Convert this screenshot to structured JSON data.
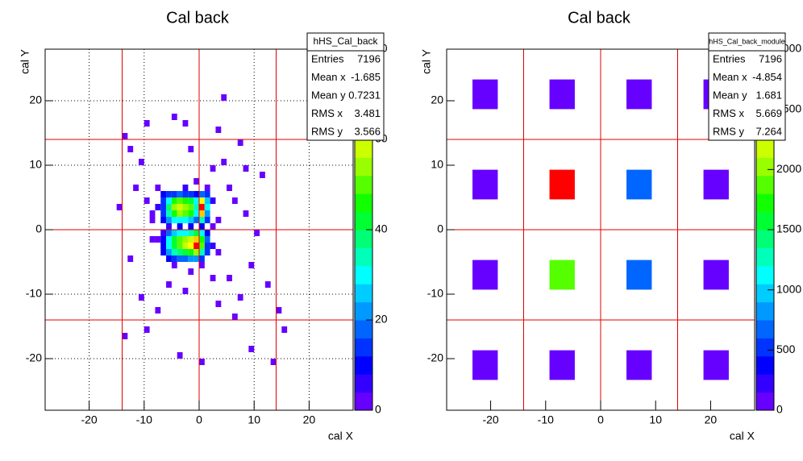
{
  "chart_data": [
    {
      "type": "heatmap",
      "title": "Cal back",
      "xlabel": "cal X",
      "ylabel": "cal Y",
      "xlim": [
        -28,
        28
      ],
      "ylim": [
        -28,
        28
      ],
      "xticks": [
        -20,
        -10,
        0,
        10,
        20
      ],
      "yticks": [
        -20,
        -10,
        0,
        10,
        20
      ],
      "zlim": [
        0,
        80
      ],
      "zticks": [
        0,
        20,
        40,
        60,
        80
      ],
      "grid": true,
      "boundaries": [
        -14,
        0,
        14
      ],
      "bin_width": 1,
      "palette": [
        "#6600ff",
        "#3300ff",
        "#0000ff",
        "#0033ff",
        "#0066ff",
        "#0099ff",
        "#00ccff",
        "#00ffff",
        "#00ffbb",
        "#00ff77",
        "#00ff33",
        "#11ff00",
        "#55ff00",
        "#99ff00",
        "#ccff00",
        "#ffff00",
        "#ffcc00",
        "#ff8800",
        "#ff4400",
        "#ff0000"
      ],
      "stats": {
        "title": "hHS_Cal_back",
        "rows": [
          {
            "label": "Entries",
            "value": 7196
          },
          {
            "label": "Mean x",
            "value": -1.685
          },
          {
            "label": "Mean y",
            "value": 0.7231
          },
          {
            "label": "RMS x",
            "value": 3.481
          },
          {
            "label": "RMS y",
            "value": 3.566
          }
        ]
      },
      "cells": [
        [
          -7,
          5,
          8
        ],
        [
          -6,
          5,
          12
        ],
        [
          -5,
          5,
          14
        ],
        [
          -4,
          5,
          16
        ],
        [
          -3,
          5,
          14
        ],
        [
          -2,
          5,
          12
        ],
        [
          -1,
          5,
          10
        ],
        [
          0,
          5,
          18
        ],
        [
          1,
          5,
          12
        ],
        [
          -7,
          4,
          12
        ],
        [
          -6,
          4,
          30
        ],
        [
          -5,
          4,
          44
        ],
        [
          -4,
          4,
          50
        ],
        [
          -3,
          4,
          46
        ],
        [
          -2,
          4,
          40
        ],
        [
          -1,
          4,
          30
        ],
        [
          0,
          4,
          60
        ],
        [
          1,
          4,
          24
        ],
        [
          -7,
          3,
          14
        ],
        [
          -6,
          3,
          36
        ],
        [
          -5,
          3,
          52
        ],
        [
          -4,
          3,
          58
        ],
        [
          -3,
          3,
          54
        ],
        [
          -2,
          3,
          48
        ],
        [
          -1,
          3,
          34
        ],
        [
          0,
          3,
          80
        ],
        [
          1,
          3,
          28
        ],
        [
          -7,
          2,
          12
        ],
        [
          -6,
          2,
          32
        ],
        [
          -5,
          2,
          46
        ],
        [
          -4,
          2,
          54
        ],
        [
          -3,
          2,
          50
        ],
        [
          -2,
          2,
          44
        ],
        [
          -1,
          2,
          30
        ],
        [
          0,
          2,
          66
        ],
        [
          1,
          2,
          22
        ],
        [
          -7,
          1,
          8
        ],
        [
          -6,
          1,
          20
        ],
        [
          -5,
          1,
          28
        ],
        [
          -4,
          1,
          30
        ],
        [
          -3,
          1,
          30
        ],
        [
          -2,
          1,
          26
        ],
        [
          -1,
          1,
          18
        ],
        [
          0,
          1,
          34
        ],
        [
          1,
          1,
          14
        ],
        [
          -6,
          0,
          6
        ],
        [
          -4,
          0,
          10
        ],
        [
          -2,
          0,
          8
        ],
        [
          0,
          0,
          10
        ],
        [
          -7,
          -1,
          6
        ],
        [
          -6,
          -1,
          16
        ],
        [
          -5,
          -1,
          24
        ],
        [
          -4,
          -1,
          28
        ],
        [
          -3,
          -1,
          30
        ],
        [
          -2,
          -1,
          32
        ],
        [
          -1,
          -1,
          40
        ],
        [
          0,
          -1,
          28
        ],
        [
          1,
          -1,
          10
        ],
        [
          -7,
          -2,
          10
        ],
        [
          -6,
          -2,
          28
        ],
        [
          -5,
          -2,
          40
        ],
        [
          -4,
          -2,
          48
        ],
        [
          -3,
          -2,
          52
        ],
        [
          -2,
          -2,
          58
        ],
        [
          -1,
          -2,
          66
        ],
        [
          0,
          -2,
          44
        ],
        [
          1,
          -2,
          16
        ],
        [
          -7,
          -3,
          10
        ],
        [
          -6,
          -3,
          30
        ],
        [
          -5,
          -3,
          42
        ],
        [
          -4,
          -3,
          50
        ],
        [
          -3,
          -3,
          56
        ],
        [
          -2,
          -3,
          62
        ],
        [
          -1,
          -3,
          76
        ],
        [
          0,
          -3,
          48
        ],
        [
          1,
          -3,
          14
        ],
        [
          -7,
          -4,
          8
        ],
        [
          -6,
          -4,
          22
        ],
        [
          -5,
          -4,
          32
        ],
        [
          -4,
          -4,
          38
        ],
        [
          -3,
          -4,
          40
        ],
        [
          -2,
          -4,
          44
        ],
        [
          -1,
          -4,
          52
        ],
        [
          0,
          -4,
          34
        ],
        [
          1,
          -4,
          12
        ],
        [
          -6,
          -5,
          10
        ],
        [
          -5,
          -5,
          14
        ],
        [
          -4,
          -5,
          16
        ],
        [
          -3,
          -5,
          18
        ],
        [
          -2,
          -5,
          20
        ],
        [
          -1,
          -5,
          22
        ],
        [
          0,
          -5,
          14
        ],
        [
          -8,
          3,
          4
        ],
        [
          -8,
          -2,
          3
        ],
        [
          2,
          4,
          5
        ],
        [
          2,
          -3,
          4
        ],
        [
          3,
          1,
          3
        ],
        [
          2,
          0,
          2
        ],
        [
          -9,
          2,
          2
        ],
        [
          3,
          -4,
          2
        ],
        [
          -3,
          6,
          4
        ],
        [
          -1,
          7,
          3
        ],
        [
          1,
          6,
          3
        ],
        [
          -5,
          -6,
          3
        ],
        [
          -2,
          -7,
          2
        ],
        [
          0,
          -6,
          3
        ],
        [
          -14,
          14,
          1
        ],
        [
          -10,
          16,
          1
        ],
        [
          -5,
          17,
          2
        ],
        [
          -3,
          16,
          1
        ],
        [
          4,
          20,
          1
        ],
        [
          3,
          15,
          1
        ],
        [
          7,
          13,
          2
        ],
        [
          -13,
          12,
          1
        ],
        [
          -11,
          10,
          1
        ],
        [
          8,
          9,
          1
        ],
        [
          11,
          8,
          1
        ],
        [
          -12,
          6,
          2
        ],
        [
          -15,
          3,
          1
        ],
        [
          -10,
          4,
          2
        ],
        [
          5,
          6,
          2
        ],
        [
          6,
          4,
          1
        ],
        [
          8,
          2,
          1
        ],
        [
          10,
          -1,
          1
        ],
        [
          -9,
          -2,
          2
        ],
        [
          -13,
          -5,
          1
        ],
        [
          9,
          -6,
          1
        ],
        [
          12,
          -9,
          1
        ],
        [
          -11,
          -11,
          1
        ],
        [
          -8,
          -13,
          1
        ],
        [
          3,
          -12,
          1
        ],
        [
          6,
          -14,
          1
        ],
        [
          14,
          -13,
          1
        ],
        [
          15,
          -16,
          1
        ],
        [
          -14,
          -17,
          1
        ],
        [
          -10,
          -16,
          1
        ],
        [
          -4,
          -20,
          1
        ],
        [
          0,
          -21,
          1
        ],
        [
          9,
          -19,
          1
        ],
        [
          13,
          -21,
          1
        ],
        [
          -9,
          1,
          2
        ],
        [
          -8,
          6,
          1
        ],
        [
          4,
          10,
          2
        ],
        [
          2,
          9,
          1
        ],
        [
          -2,
          12,
          1
        ],
        [
          -6,
          -9,
          2
        ],
        [
          -3,
          -10,
          1
        ],
        [
          2,
          -8,
          2
        ],
        [
          5,
          -8,
          1
        ],
        [
          7,
          -11,
          1
        ]
      ]
    },
    {
      "type": "heatmap",
      "title": "Cal back",
      "xlabel": "cal X",
      "ylabel": "cal Y",
      "xlim": [
        -28,
        28
      ],
      "ylim": [
        -28,
        28
      ],
      "xticks": [
        -20,
        -10,
        0,
        10,
        20
      ],
      "yticks": [
        -20,
        -10,
        0,
        10,
        20
      ],
      "zlim": [
        0,
        3000
      ],
      "zticks": [
        0,
        500,
        1000,
        1500,
        2000,
        2500,
        3000
      ],
      "grid": false,
      "boundaries": [
        -14,
        0,
        14
      ],
      "bin_width": 4.6,
      "palette": [
        "#6600ff",
        "#3300ff",
        "#0000ff",
        "#0033ff",
        "#0066ff",
        "#0099ff",
        "#00ccff",
        "#00ffff",
        "#00ffbb",
        "#00ff77",
        "#00ff33",
        "#11ff00",
        "#55ff00",
        "#99ff00",
        "#ccff00",
        "#ffff00",
        "#ffcc00",
        "#ff8800",
        "#ff4400",
        "#ff0000"
      ],
      "stats": {
        "title": "hHS_Cal_back_module",
        "rows": [
          {
            "label": "Entries",
            "value": 7196
          },
          {
            "label": "Mean x",
            "value": -4.854
          },
          {
            "label": "Mean y",
            "value": 1.681
          },
          {
            "label": "RMS x",
            "value": 5.669
          },
          {
            "label": "RMS y",
            "value": 7.264
          }
        ]
      },
      "cells": [
        [
          -23.3,
          18.7,
          100
        ],
        [
          -9.3,
          18.7,
          100
        ],
        [
          4.7,
          18.7,
          100
        ],
        [
          18.7,
          18.7,
          100
        ],
        [
          -23.3,
          4.7,
          100
        ],
        [
          -9.3,
          4.7,
          2850
        ],
        [
          4.7,
          4.7,
          700
        ],
        [
          18.7,
          4.7,
          100
        ],
        [
          -23.3,
          -9.3,
          100
        ],
        [
          -9.3,
          -9.3,
          1850
        ],
        [
          4.7,
          -9.3,
          700
        ],
        [
          18.7,
          -9.3,
          100
        ],
        [
          -23.3,
          -23.3,
          100
        ],
        [
          -9.3,
          -23.3,
          100
        ],
        [
          4.7,
          -23.3,
          100
        ],
        [
          18.7,
          -23.3,
          100
        ]
      ]
    }
  ]
}
